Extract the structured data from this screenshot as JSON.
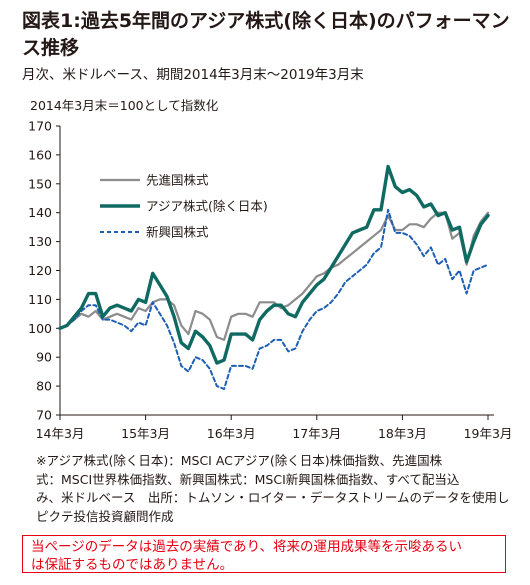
{
  "header": {
    "title": "図表1:過去5年間のアジア株式(除く日本)のパフォーマンス推移",
    "subtitle": "月次、米ドルベース、期間2014年3月末～2019年3月末",
    "base_note": "2014年3月末＝100として指数化"
  },
  "notes": {
    "line1": "※アジア株式(除く日本)：MSCI ACアジア(除く日本)株価指数、先進国株",
    "line2": "式：MSCI世界株価指数、新興国株式：MSCI新興国株価指数、すべて配当込",
    "line3": "み、米ドルベース　出所：トムソン・ロイター・データストリームのデータを使用し",
    "line4": "ピクテ投信投資顧問作成"
  },
  "disclaimer": {
    "line1": "当ページのデータは過去の実績であり、将来の運用成果等を示唆あるい",
    "line2": "は保証するものではありません。"
  },
  "chart_data": {
    "type": "line",
    "x": [
      "2014-03",
      "2014-04",
      "2014-05",
      "2014-06",
      "2014-07",
      "2014-08",
      "2014-09",
      "2014-10",
      "2014-11",
      "2014-12",
      "2015-01",
      "2015-02",
      "2015-03",
      "2015-04",
      "2015-05",
      "2015-06",
      "2015-07",
      "2015-08",
      "2015-09",
      "2015-10",
      "2015-11",
      "2015-12",
      "2016-01",
      "2016-02",
      "2016-03",
      "2016-04",
      "2016-05",
      "2016-06",
      "2016-07",
      "2016-08",
      "2016-09",
      "2016-10",
      "2016-11",
      "2016-12",
      "2017-01",
      "2017-02",
      "2017-03",
      "2017-04",
      "2017-05",
      "2017-06",
      "2017-07",
      "2017-08",
      "2017-09",
      "2017-10",
      "2017-11",
      "2017-12",
      "2018-01",
      "2018-02",
      "2018-03",
      "2018-04",
      "2018-05",
      "2018-06",
      "2018-07",
      "2018-08",
      "2018-09",
      "2018-10",
      "2018-11",
      "2018-12",
      "2019-01",
      "2019-02",
      "2019-03"
    ],
    "x_tick_labels": [
      "14年3月",
      "15年3月",
      "16年3月",
      "17年3月",
      "18年3月",
      "19年3月"
    ],
    "ylim": [
      70,
      170
    ],
    "y_ticks": [
      70,
      80,
      90,
      100,
      110,
      120,
      130,
      140,
      150,
      160,
      170
    ],
    "grid": false,
    "legend_position": "upper-left",
    "series": [
      {
        "name": "先進国株式",
        "color": "#8c8c8c",
        "style": "solid",
        "values": [
          100,
          101,
          103,
          105,
          104,
          106,
          103,
          104,
          105,
          104,
          103,
          107,
          106,
          109,
          110,
          110,
          108,
          101,
          98,
          106,
          105,
          103,
          97,
          96,
          104,
          105,
          105,
          104,
          109,
          109,
          109,
          107,
          108,
          110,
          112,
          115,
          118,
          119,
          121,
          122,
          124,
          126,
          128,
          130,
          132,
          134,
          139,
          134,
          134,
          136,
          136,
          135,
          138,
          140,
          140,
          131,
          133,
          122,
          132,
          137,
          140
        ]
      },
      {
        "name": "アジア株式(除く日本)",
        "color": "#0f6a62",
        "style": "solid-thick",
        "values": [
          100,
          101,
          104,
          107,
          112,
          112,
          104,
          107,
          108,
          107,
          106,
          110,
          109,
          119,
          115,
          111,
          104,
          95,
          93,
          99,
          97,
          94,
          88,
          89,
          98,
          98,
          98,
          96,
          103,
          106,
          108,
          108,
          105,
          104,
          109,
          112,
          115,
          117,
          121,
          125,
          129,
          133,
          134,
          135,
          141,
          141,
          156,
          149,
          147,
          148,
          146,
          142,
          143,
          139,
          140,
          134,
          135,
          123,
          130,
          136,
          139
        ]
      },
      {
        "name": "新興国株式",
        "color": "#1c5fb5",
        "style": "dashed",
        "values": [
          100,
          101,
          103,
          106,
          108,
          108,
          103,
          103,
          102,
          101,
          99,
          102,
          101,
          109,
          105,
          101,
          95,
          87,
          85,
          90,
          89,
          86,
          80,
          79,
          87,
          87,
          87,
          86,
          93,
          94,
          96,
          96,
          92,
          93,
          99,
          103,
          106,
          107,
          109,
          112,
          116,
          118,
          120,
          122,
          126,
          128,
          141,
          133,
          133,
          132,
          129,
          125,
          128,
          122,
          124,
          117,
          120,
          112,
          120,
          121,
          122
        ]
      }
    ]
  }
}
